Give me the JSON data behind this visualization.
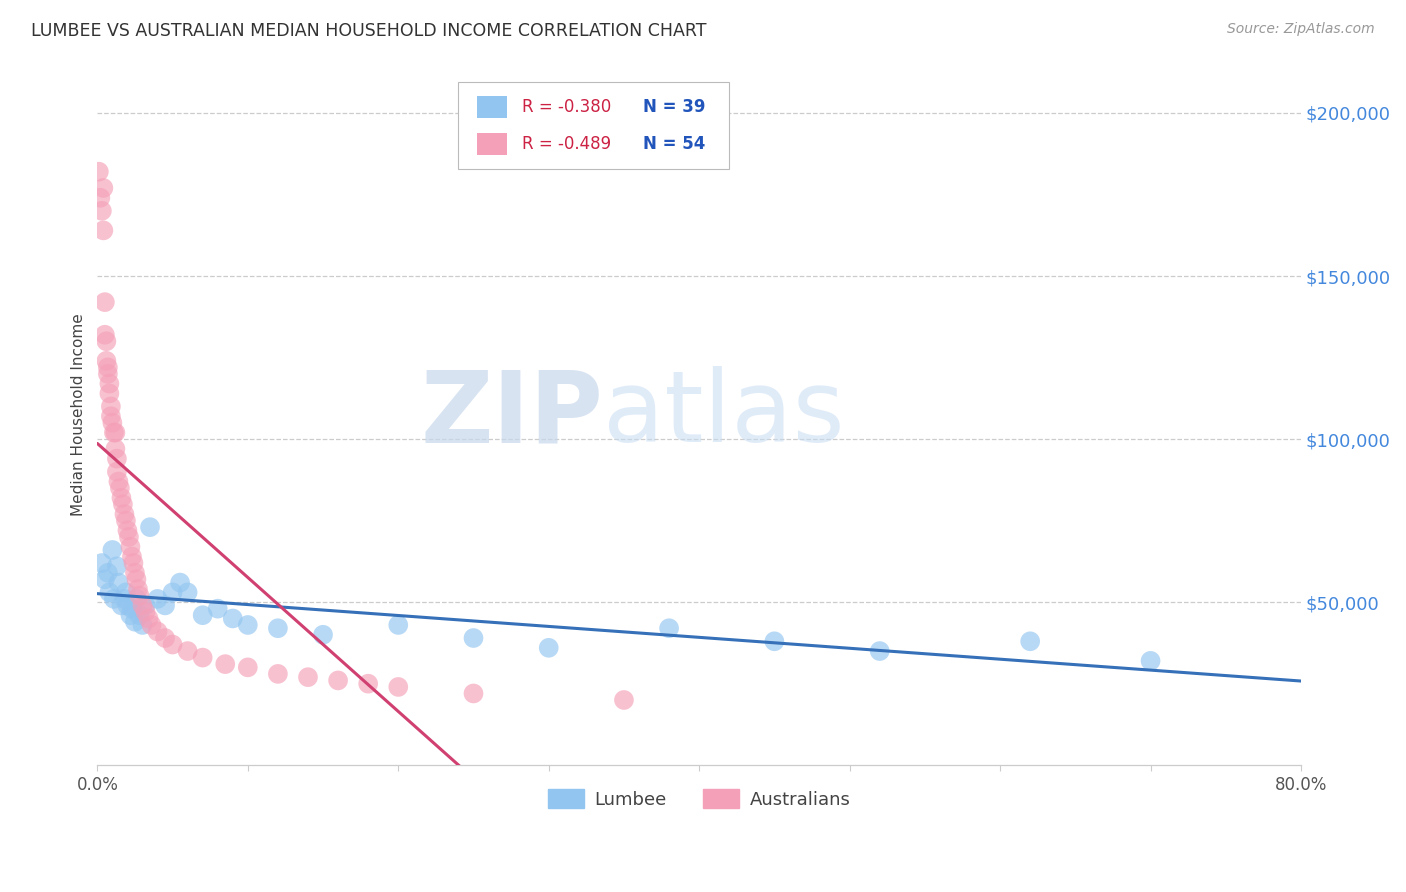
{
  "title": "LUMBEE VS AUSTRALIAN MEDIAN HOUSEHOLD INCOME CORRELATION CHART",
  "source": "Source: ZipAtlas.com",
  "ylabel": "Median Household Income",
  "xlim": [
    0.0,
    0.8
  ],
  "ylim": [
    0,
    215000
  ],
  "watermark_zip": "ZIP",
  "watermark_atlas": "atlas",
  "legend_r_blue": "-0.380",
  "legend_n_blue": "39",
  "legend_r_pink": "-0.489",
  "legend_n_pink": "54",
  "legend_label_blue": "Lumbee",
  "legend_label_pink": "Australians",
  "blue_color": "#92C5F0",
  "pink_color": "#F4A0B8",
  "blue_line_color": "#3570B8",
  "pink_line_color": "#D04070",
  "lumbee_x": [
    0.003,
    0.005,
    0.007,
    0.008,
    0.01,
    0.011,
    0.013,
    0.014,
    0.016,
    0.018,
    0.019,
    0.02,
    0.022,
    0.023,
    0.025,
    0.026,
    0.028,
    0.03,
    0.032,
    0.035,
    0.04,
    0.045,
    0.05,
    0.055,
    0.06,
    0.07,
    0.08,
    0.09,
    0.1,
    0.12,
    0.15,
    0.2,
    0.25,
    0.3,
    0.38,
    0.45,
    0.52,
    0.62,
    0.7
  ],
  "lumbee_y": [
    62000,
    57000,
    59000,
    53000,
    66000,
    51000,
    61000,
    56000,
    49000,
    51000,
    53000,
    49000,
    46000,
    48000,
    44000,
    51000,
    46000,
    43000,
    49000,
    73000,
    51000,
    49000,
    53000,
    56000,
    53000,
    46000,
    48000,
    45000,
    43000,
    42000,
    40000,
    43000,
    39000,
    36000,
    42000,
    38000,
    35000,
    38000,
    32000
  ],
  "aus_x": [
    0.001,
    0.002,
    0.003,
    0.004,
    0.004,
    0.005,
    0.005,
    0.006,
    0.006,
    0.007,
    0.007,
    0.008,
    0.008,
    0.009,
    0.009,
    0.01,
    0.011,
    0.012,
    0.012,
    0.013,
    0.013,
    0.014,
    0.015,
    0.016,
    0.017,
    0.018,
    0.019,
    0.02,
    0.021,
    0.022,
    0.023,
    0.024,
    0.025,
    0.026,
    0.027,
    0.028,
    0.03,
    0.032,
    0.034,
    0.036,
    0.04,
    0.045,
    0.05,
    0.06,
    0.07,
    0.085,
    0.1,
    0.12,
    0.14,
    0.16,
    0.18,
    0.2,
    0.25,
    0.35
  ],
  "aus_y": [
    182000,
    174000,
    170000,
    177000,
    164000,
    142000,
    132000,
    130000,
    124000,
    122000,
    120000,
    117000,
    114000,
    110000,
    107000,
    105000,
    102000,
    102000,
    97000,
    94000,
    90000,
    87000,
    85000,
    82000,
    80000,
    77000,
    75000,
    72000,
    70000,
    67000,
    64000,
    62000,
    59000,
    57000,
    54000,
    52000,
    49000,
    47000,
    45000,
    43000,
    41000,
    39000,
    37000,
    35000,
    33000,
    31000,
    30000,
    28000,
    27000,
    26000,
    25000,
    24000,
    22000,
    20000
  ]
}
